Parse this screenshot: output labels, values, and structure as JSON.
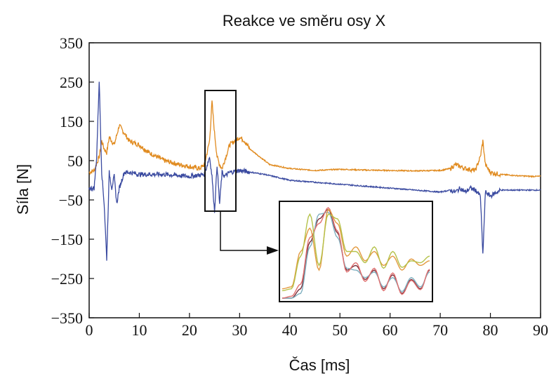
{
  "chart_data": {
    "type": "line",
    "title": "Reakce ve směru osy X",
    "xlabel": "Čas [ms]",
    "ylabel": "Síla [N]",
    "xlim": [
      0,
      90
    ],
    "ylim": [
      -350,
      350
    ],
    "x_ticks": [
      "0",
      "10",
      "20",
      "30",
      "40",
      "50",
      "60",
      "70",
      "80",
      "90"
    ],
    "y_ticks": [
      "350",
      "250",
      "150",
      "50",
      "−50",
      "−150",
      "−250",
      "−350"
    ],
    "grid": false,
    "legend": "none",
    "series": [
      {
        "color": "#e08a1e",
        "x": [
          0,
          1,
          2,
          2.5,
          3,
          3.5,
          4,
          5,
          6,
          8,
          10,
          12,
          15,
          18,
          20,
          22,
          23,
          24,
          24.5,
          25,
          25.5,
          26,
          26.5,
          27,
          28,
          29,
          30,
          31,
          32,
          34,
          36,
          40,
          45,
          50,
          55,
          60,
          65,
          70,
          72,
          73,
          75,
          77,
          78,
          78.5,
          79,
          80,
          82,
          85,
          88,
          90
        ],
        "y": [
          20,
          25,
          60,
          100,
          80,
          70,
          110,
          90,
          140,
          100,
          90,
          70,
          50,
          40,
          35,
          30,
          40,
          100,
          200,
          120,
          60,
          40,
          30,
          50,
          90,
          100,
          110,
          100,
          80,
          60,
          40,
          30,
          25,
          28,
          26,
          25,
          24,
          25,
          30,
          40,
          30,
          25,
          60,
          100,
          40,
          20,
          15,
          12,
          10,
          10
        ]
      },
      {
        "color": "#3a4aa0",
        "x": [
          0,
          1,
          1.5,
          2,
          2.5,
          3,
          3.5,
          4,
          4.5,
          5,
          5.5,
          6,
          7,
          8,
          10,
          15,
          20,
          23,
          24,
          24.5,
          25,
          25.5,
          26,
          26.5,
          27,
          28,
          30,
          35,
          40,
          45,
          50,
          55,
          60,
          65,
          70,
          72,
          73,
          74,
          75,
          76,
          77,
          78,
          78.5,
          79,
          80,
          82,
          85,
          90
        ],
        "y": [
          -20,
          -20,
          60,
          255,
          20,
          -60,
          -200,
          20,
          -20,
          10,
          -60,
          -20,
          20,
          20,
          15,
          15,
          10,
          15,
          60,
          10,
          -80,
          40,
          -60,
          20,
          10,
          20,
          25,
          15,
          0,
          -5,
          -10,
          -15,
          -20,
          -25,
          -30,
          -25,
          -30,
          -20,
          -30,
          -20,
          -25,
          -40,
          -190,
          -30,
          -40,
          -25,
          -25,
          -25
        ]
      }
    ],
    "inset": {
      "x_range": [
        23,
        29
      ],
      "y_range": [
        -85,
        230
      ],
      "series": [
        {
          "color": "#7a2e3a",
          "y": [
            0,
            0,
            0.1,
            0.6,
            0.85,
            0.95,
            0.7,
            0.3,
            0.35,
            0.2,
            0.3,
            0.1,
            0.25,
            0.05,
            0.2,
            0.1,
            0.3
          ]
        },
        {
          "color": "#7fb0c0",
          "y": [
            0,
            0,
            0.05,
            0.55,
            0.9,
            0.92,
            0.65,
            0.32,
            0.3,
            0.22,
            0.28,
            0.12,
            0.22,
            0.07,
            0.22,
            0.12,
            0.28
          ]
        },
        {
          "color": "#e07070",
          "y": [
            0,
            0.02,
            0.15,
            0.65,
            0.8,
            0.97,
            0.72,
            0.28,
            0.38,
            0.18,
            0.32,
            0.08,
            0.27,
            0.04,
            0.19,
            0.09,
            0.31
          ]
        },
        {
          "color": "#e39a40",
          "y": [
            0.1,
            0.12,
            0.5,
            0.75,
            0.3,
            0.95,
            0.8,
            0.45,
            0.55,
            0.4,
            0.5,
            0.35,
            0.45,
            0.3,
            0.42,
            0.35,
            0.4
          ]
        },
        {
          "color": "#b5c24a",
          "y": [
            0.08,
            0.1,
            0.45,
            0.9,
            0.35,
            0.9,
            0.85,
            0.5,
            0.5,
            0.38,
            0.55,
            0.32,
            0.5,
            0.33,
            0.4,
            0.38,
            0.45
          ]
        }
      ]
    }
  }
}
